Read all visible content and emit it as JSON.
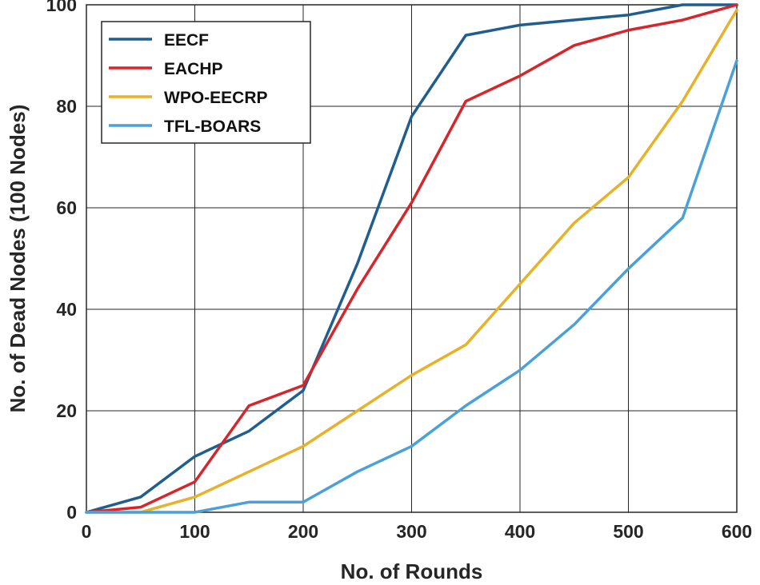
{
  "chart_data": {
    "type": "line",
    "title": "",
    "xlabel": "No. of Rounds",
    "ylabel": "No. of Dead Nodes (100 Nodes)",
    "xlim": [
      0,
      600
    ],
    "ylim": [
      0,
      100
    ],
    "xticks": [
      "0",
      "100",
      "200",
      "300",
      "400",
      "500",
      "600"
    ],
    "yticks": [
      "0",
      "20",
      "40",
      "60",
      "80",
      "100"
    ],
    "grid": true,
    "legend_position": "top-left",
    "x": [
      0,
      50,
      100,
      150,
      200,
      250,
      300,
      350,
      400,
      450,
      500,
      550,
      600
    ],
    "series": [
      {
        "name": "EECF",
        "color": "#1f5e8e",
        "values": [
          0,
          3,
          11,
          16,
          24,
          49,
          78,
          94,
          96,
          97,
          98,
          100,
          100
        ]
      },
      {
        "name": "EACHP",
        "color": "#d7262b",
        "values": [
          0,
          1,
          6,
          21,
          25,
          44,
          61,
          81,
          86,
          92,
          95,
          97,
          100
        ]
      },
      {
        "name": "WPO-EECRP",
        "color": "#e8b12a",
        "values": [
          0,
          0,
          3,
          8,
          13,
          20,
          27,
          33,
          45,
          57,
          66,
          81,
          99
        ]
      },
      {
        "name": "TFL-BOARS",
        "color": "#4aa0d8",
        "values": [
          0,
          0,
          0,
          2,
          2,
          8,
          13,
          21,
          28,
          37,
          48,
          58,
          89
        ]
      }
    ]
  }
}
